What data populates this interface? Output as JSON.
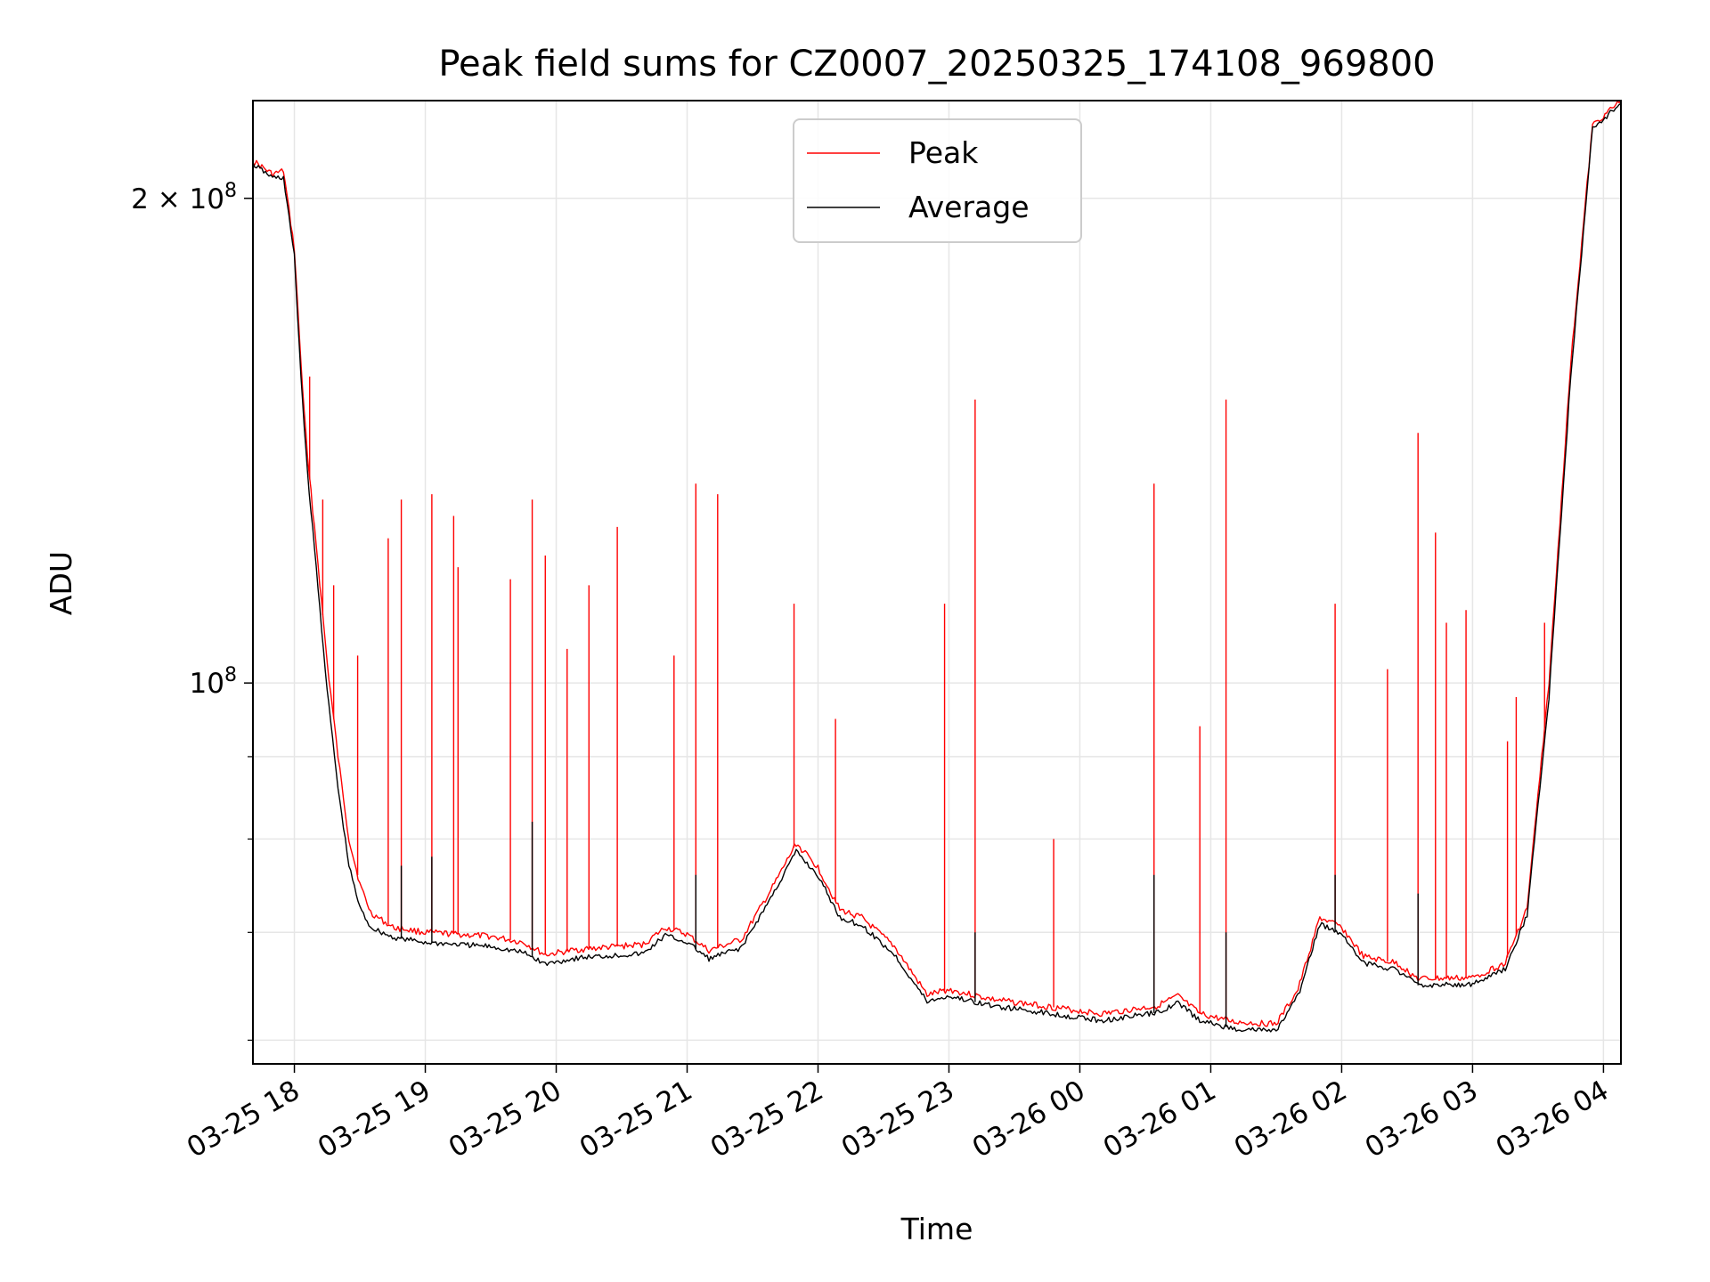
{
  "chart_data": {
    "type": "line",
    "title": "Peak field sums for CZ0007_20250325_174108_969800",
    "xlabel": "Time",
    "ylabel": "ADU",
    "y_scale": "log",
    "ylim": [
      58000000,
      230000000
    ],
    "xlim": [
      "2025-03-25 17:41",
      "2025-03-26 04:08"
    ],
    "grid": true,
    "legend_position": "top-center",
    "x_tick_labels": [
      "03-25 18",
      "03-25 19",
      "03-25 20",
      "03-25 21",
      "03-25 22",
      "03-25 23",
      "03-26 00",
      "03-26 01",
      "03-26 02",
      "03-26 03",
      "03-26 04"
    ],
    "x_ticks": [
      "2025-03-25 18:00",
      "2025-03-25 19:00",
      "2025-03-25 20:00",
      "2025-03-25 21:00",
      "2025-03-25 22:00",
      "2025-03-25 23:00",
      "2025-03-26 00:00",
      "2025-03-26 01:00",
      "2025-03-26 02:00",
      "2025-03-26 03:00",
      "2025-03-26 04:00"
    ],
    "y_tick_labels": [
      {
        "value": 200000000,
        "base": "2 × 10",
        "exp": "8"
      },
      {
        "value": 100000000,
        "base": "10",
        "exp": "8"
      }
    ],
    "colors": {
      "Peak": "#ff0000",
      "Average": "#000000"
    },
    "series": [
      {
        "name": "Peak",
        "color": "#ff0000",
        "points": [
          [
            "2025-03-25 17:41",
            211000000
          ],
          [
            "2025-03-25 17:50",
            207000000
          ],
          [
            "2025-03-25 17:55",
            208000000
          ],
          [
            "2025-03-25 18:00",
            186000000
          ],
          [
            "2025-03-25 18:03",
            158000000
          ],
          [
            "2025-03-25 18:06",
            138000000
          ],
          [
            "2025-03-25 18:10",
            122000000
          ],
          [
            "2025-03-25 18:15",
            103000000
          ],
          [
            "2025-03-25 18:20",
            90000000
          ],
          [
            "2025-03-25 18:25",
            80000000
          ],
          [
            "2025-03-25 18:30",
            75000000
          ],
          [
            "2025-03-25 18:35",
            72000000
          ],
          [
            "2025-03-25 18:45",
            70500000
          ],
          [
            "2025-03-25 19:00",
            70000000
          ],
          [
            "2025-03-25 19:30",
            69600000
          ],
          [
            "2025-03-25 19:45",
            69000000
          ],
          [
            "2025-03-25 19:55",
            67800000
          ],
          [
            "2025-03-25 20:10",
            68300000
          ],
          [
            "2025-03-25 20:40",
            68800000
          ],
          [
            "2025-03-25 20:50",
            70500000
          ],
          [
            "2025-03-25 21:00",
            69800000
          ],
          [
            "2025-03-25 21:10",
            68200000
          ],
          [
            "2025-03-25 21:25",
            69300000
          ],
          [
            "2025-03-25 21:40",
            75000000
          ],
          [
            "2025-03-25 21:50",
            79500000
          ],
          [
            "2025-03-25 22:00",
            76800000
          ],
          [
            "2025-03-25 22:10",
            72300000
          ],
          [
            "2025-03-25 22:20",
            71500000
          ],
          [
            "2025-03-25 22:35",
            68600000
          ],
          [
            "2025-03-25 22:50",
            64000000
          ],
          [
            "2025-03-25 23:00",
            64500000
          ],
          [
            "2025-03-25 23:20",
            63600000
          ],
          [
            "2025-03-25 23:40",
            63100000
          ],
          [
            "2025-03-26 00:10",
            62300000
          ],
          [
            "2025-03-26 00:35",
            63000000
          ],
          [
            "2025-03-26 00:45",
            63900000
          ],
          [
            "2025-03-26 00:55",
            62300000
          ],
          [
            "2025-03-26 01:10",
            61600000
          ],
          [
            "2025-03-26 01:30",
            61400000
          ],
          [
            "2025-03-26 01:40",
            64500000
          ],
          [
            "2025-03-26 01:50",
            71500000
          ],
          [
            "2025-03-26 02:00",
            70500000
          ],
          [
            "2025-03-26 02:10",
            67600000
          ],
          [
            "2025-03-26 02:25",
            67000000
          ],
          [
            "2025-03-26 02:35",
            65500000
          ],
          [
            "2025-03-26 03:00",
            65600000
          ],
          [
            "2025-03-26 03:15",
            67000000
          ],
          [
            "2025-03-26 03:25",
            72500000
          ],
          [
            "2025-03-26 03:35",
            100000000
          ],
          [
            "2025-03-26 03:45",
            158000000
          ],
          [
            "2025-03-26 03:55",
            222000000
          ],
          [
            "2025-03-26 04:08",
            230000000
          ]
        ],
        "spikes": [
          [
            "2025-03-25 18:07",
            155000000
          ],
          [
            "2025-03-25 18:13",
            130000000
          ],
          [
            "2025-03-25 18:18",
            115000000
          ],
          [
            "2025-03-25 18:29",
            104000000
          ],
          [
            "2025-03-25 18:43",
            123000000
          ],
          [
            "2025-03-25 18:49",
            130000000
          ],
          [
            "2025-03-25 19:03",
            131000000
          ],
          [
            "2025-03-25 19:13",
            127000000
          ],
          [
            "2025-03-25 19:15",
            118000000
          ],
          [
            "2025-03-25 19:39",
            116000000
          ],
          [
            "2025-03-25 19:49",
            130000000
          ],
          [
            "2025-03-25 19:55",
            120000000
          ],
          [
            "2025-03-25 20:05",
            105000000
          ],
          [
            "2025-03-25 20:15",
            115000000
          ],
          [
            "2025-03-25 20:28",
            125000000
          ],
          [
            "2025-03-25 20:54",
            104000000
          ],
          [
            "2025-03-25 21:04",
            133000000
          ],
          [
            "2025-03-25 21:14",
            131000000
          ],
          [
            "2025-03-25 21:49",
            112000000
          ],
          [
            "2025-03-25 22:08",
            95000000
          ],
          [
            "2025-03-25 22:58",
            112000000
          ],
          [
            "2025-03-25 23:12",
            150000000
          ],
          [
            "2025-03-25 23:48",
            80000000
          ],
          [
            "2025-03-26 00:34",
            133000000
          ],
          [
            "2025-03-26 00:55",
            94000000
          ],
          [
            "2025-03-26 01:07",
            150000000
          ],
          [
            "2025-03-26 01:57",
            112000000
          ],
          [
            "2025-03-26 02:21",
            102000000
          ],
          [
            "2025-03-26 02:35",
            143000000
          ],
          [
            "2025-03-26 02:43",
            124000000
          ],
          [
            "2025-03-26 02:48",
            109000000
          ],
          [
            "2025-03-26 02:57",
            111000000
          ],
          [
            "2025-03-26 03:16",
            92000000
          ],
          [
            "2025-03-26 03:20",
            98000000
          ],
          [
            "2025-03-26 03:33",
            109000000
          ]
        ]
      },
      {
        "name": "Average",
        "color": "#000000",
        "points": [
          [
            "2025-03-25 17:41",
            210000000
          ],
          [
            "2025-03-25 17:50",
            206000000
          ],
          [
            "2025-03-25 17:55",
            206000000
          ],
          [
            "2025-03-25 18:00",
            184000000
          ],
          [
            "2025-03-25 18:03",
            155000000
          ],
          [
            "2025-03-25 18:06",
            135000000
          ],
          [
            "2025-03-25 18:10",
            118000000
          ],
          [
            "2025-03-25 18:15",
            99000000
          ],
          [
            "2025-03-25 18:20",
            86000000
          ],
          [
            "2025-03-25 18:25",
            77000000
          ],
          [
            "2025-03-25 18:30",
            72500000
          ],
          [
            "2025-03-25 18:35",
            70500000
          ],
          [
            "2025-03-25 18:45",
            69500000
          ],
          [
            "2025-03-25 19:00",
            69000000
          ],
          [
            "2025-03-25 19:30",
            68600000
          ],
          [
            "2025-03-25 19:45",
            68000000
          ],
          [
            "2025-03-25 19:55",
            66900000
          ],
          [
            "2025-03-25 20:10",
            67500000
          ],
          [
            "2025-03-25 20:40",
            67900000
          ],
          [
            "2025-03-25 20:50",
            69700000
          ],
          [
            "2025-03-25 21:00",
            69000000
          ],
          [
            "2025-03-25 21:10",
            67400000
          ],
          [
            "2025-03-25 21:25",
            68500000
          ],
          [
            "2025-03-25 21:40",
            74200000
          ],
          [
            "2025-03-25 21:50",
            78600000
          ],
          [
            "2025-03-25 22:00",
            75900000
          ],
          [
            "2025-03-25 22:10",
            71500000
          ],
          [
            "2025-03-25 22:20",
            70700000
          ],
          [
            "2025-03-25 22:35",
            67800000
          ],
          [
            "2025-03-25 22:50",
            63400000
          ],
          [
            "2025-03-25 23:00",
            63900000
          ],
          [
            "2025-03-25 23:20",
            63000000
          ],
          [
            "2025-03-25 23:40",
            62500000
          ],
          [
            "2025-03-26 00:10",
            61700000
          ],
          [
            "2025-03-26 00:35",
            62400000
          ],
          [
            "2025-03-26 00:45",
            63300000
          ],
          [
            "2025-03-26 00:55",
            61700000
          ],
          [
            "2025-03-26 01:10",
            61000000
          ],
          [
            "2025-03-26 01:30",
            60800000
          ],
          [
            "2025-03-26 01:40",
            63900000
          ],
          [
            "2025-03-26 01:50",
            70800000
          ],
          [
            "2025-03-26 02:00",
            69900000
          ],
          [
            "2025-03-26 02:10",
            67000000
          ],
          [
            "2025-03-26 02:25",
            66400000
          ],
          [
            "2025-03-26 02:35",
            64900000
          ],
          [
            "2025-03-26 03:00",
            65000000
          ],
          [
            "2025-03-26 03:15",
            66400000
          ],
          [
            "2025-03-26 03:25",
            71800000
          ],
          [
            "2025-03-26 03:35",
            98000000
          ],
          [
            "2025-03-26 03:45",
            155000000
          ],
          [
            "2025-03-26 03:55",
            221000000
          ],
          [
            "2025-03-26 04:08",
            229000000
          ]
        ],
        "spikes": [
          [
            "2025-03-25 18:49",
            77000000
          ],
          [
            "2025-03-25 19:03",
            78000000
          ],
          [
            "2025-03-25 19:49",
            82000000
          ],
          [
            "2025-03-25 21:04",
            76000000
          ],
          [
            "2025-03-25 23:12",
            70000000
          ],
          [
            "2025-03-26 00:34",
            76000000
          ],
          [
            "2025-03-26 01:07",
            70000000
          ],
          [
            "2025-03-26 01:57",
            76000000
          ],
          [
            "2025-03-26 02:35",
            74000000
          ]
        ]
      }
    ]
  }
}
